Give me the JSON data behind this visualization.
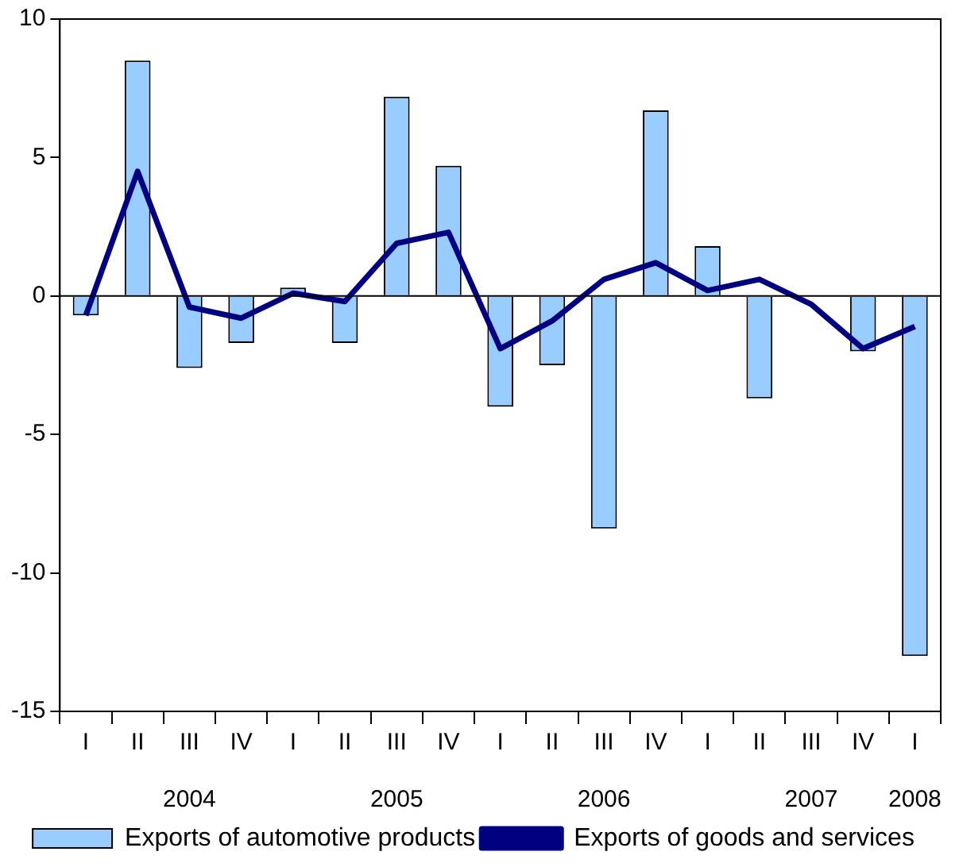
{
  "chart_data": {
    "type": "bar",
    "categories": [
      "I",
      "II",
      "III\n2004",
      "IV",
      "I",
      "II",
      "III\n2005",
      "IV",
      "I",
      "II",
      "III\n2006",
      "IV",
      "I",
      "II",
      "III\n2007",
      "IV",
      "I\n2008"
    ],
    "series": [
      {
        "name": "Exports of automotive products",
        "color": "#99ccff",
        "values": [
          -0.7,
          8.5,
          -2.6,
          -1.7,
          0.3,
          -1.7,
          7.2,
          4.7,
          -4.0,
          -2.5,
          -8.4,
          6.7,
          1.8,
          -3.7,
          0,
          -2.0,
          -13.0
        ]
      },
      {
        "name": "Exports of goods and services",
        "type": "line",
        "color": "#000080",
        "values": [
          -0.7,
          4.5,
          -0.4,
          -0.8,
          0.1,
          -0.2,
          1.9,
          2.3,
          -1.9,
          -0.9,
          0.6,
          1.2,
          0.2,
          0.6,
          -0.3,
          -1.9,
          -1.1
        ]
      }
    ],
    "ref_lines": [
      {
        "axis": "y",
        "value": 0,
        "color": "#000000"
      }
    ],
    "ylim": [
      -15,
      10
    ],
    "yticks": [
      -15,
      -10,
      -5,
      0,
      5,
      10
    ],
    "grid": false,
    "legend": "bottom",
    "marker": "none",
    "line_style": "solid"
  }
}
